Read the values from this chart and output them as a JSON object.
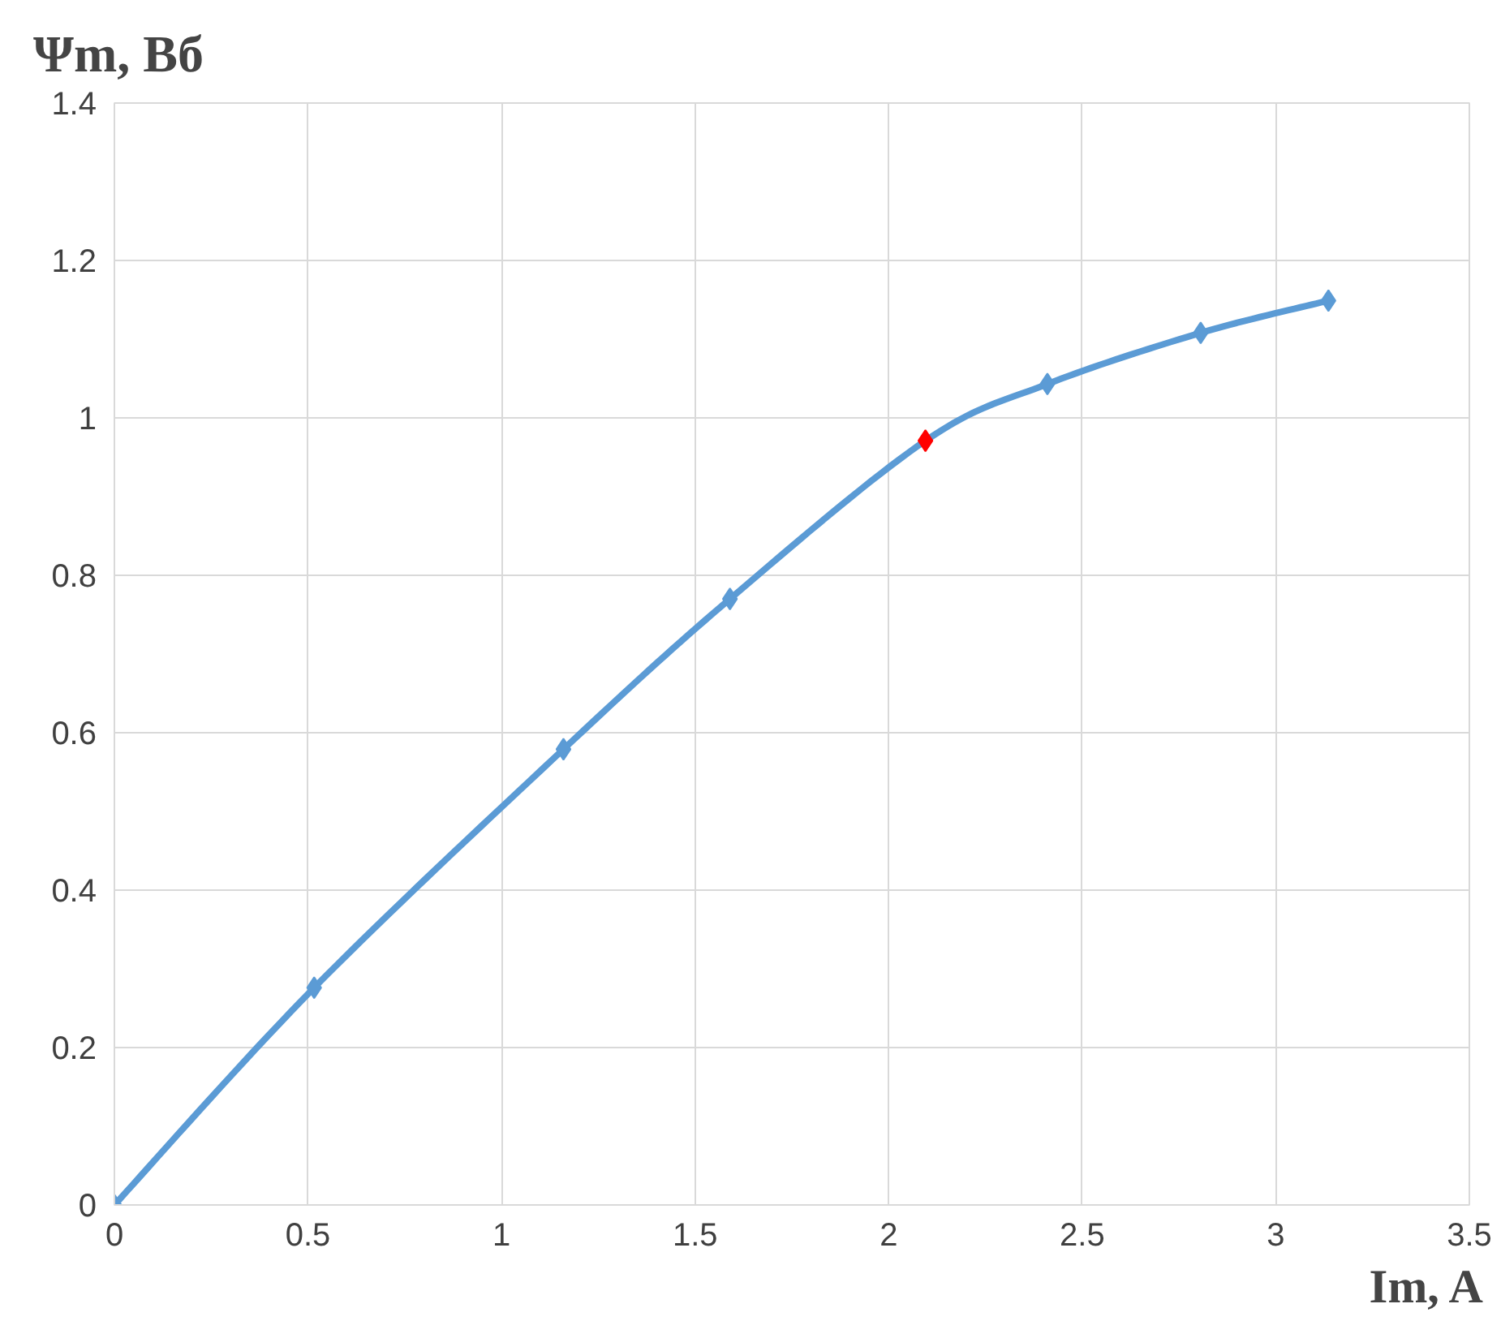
{
  "chart_data": {
    "type": "line",
    "xlabel": "Im, A",
    "ylabel": "Ψm, Вб",
    "x": [
      0,
      0.516,
      1.16,
      1.59,
      2.095,
      2.41,
      2.806,
      3.136
    ],
    "series": [
      {
        "color": "#5b9bd5",
        "colors": [
          "#5b9bd5",
          "#5b9bd5",
          "#5b9bd5",
          "#5b9bd5",
          "#ff0000",
          "#5b9bd5",
          "#5b9bd5",
          "#5b9bd5"
        ],
        "values": [
          0,
          0.276,
          0.579,
          0.77,
          0.971,
          1.043,
          1.108,
          1.149
        ]
      }
    ],
    "xlim": [
      0,
      3.5
    ],
    "xticks": [
      0,
      0.5,
      1,
      1.5,
      2,
      2.5,
      3,
      3.5
    ],
    "ylim": [
      0,
      1.4
    ],
    "yticks": [
      0,
      0.2,
      0.4,
      0.6,
      0.8,
      1,
      1.2,
      1.4
    ],
    "grid": true,
    "marker": "diamond",
    "line_style": "solid"
  }
}
